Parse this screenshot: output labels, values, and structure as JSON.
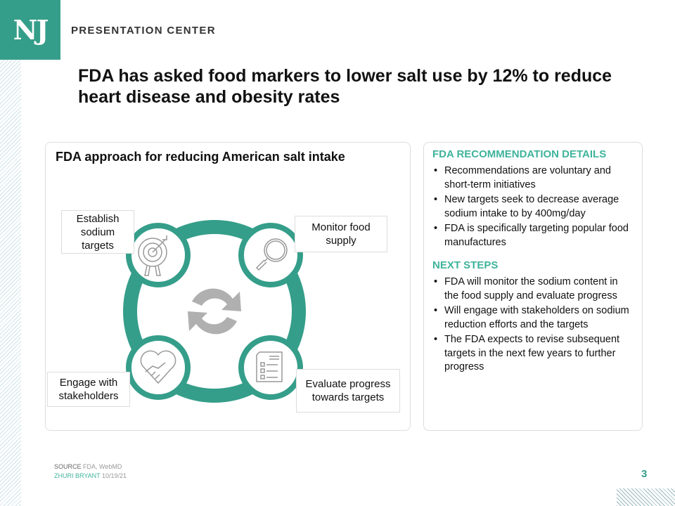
{
  "header": {
    "logo": "NJ",
    "brand": "PRESENTATION CENTER",
    "title": "FDA has asked food markers to lower salt use by 12% to reduce heart disease and obesity rates"
  },
  "colors": {
    "accent": "#359e8a",
    "heading": "#3fb39b",
    "icon": "#999999"
  },
  "diagram": {
    "title": "FDA approach for reducing American salt intake",
    "center_icon": "refresh-cycle-icon",
    "steps": [
      {
        "label": "Establish sodium targets",
        "icon": "target-icon"
      },
      {
        "label": "Monitor food supply",
        "icon": "magnifier-icon"
      },
      {
        "label": "Engage with stakeholders",
        "icon": "heart-handshake-icon"
      },
      {
        "label": "Evaluate progress towards targets",
        "icon": "checklist-icon"
      }
    ]
  },
  "details": {
    "heading1": "FDA RECOMMENDATION DETAILS",
    "items1": [
      "Recommendations are voluntary  and short-term  initiatives",
      "New targets seek to decrease average sodium intake to by 400mg/day",
      "FDA is specifically targeting popular food manufactures"
    ],
    "heading2": "NEXT STEPS",
    "items2": [
      "FDA will monitor the sodium content in the food supply and evaluate progress",
      "Will engage with stakeholders on sodium reduction efforts and the targets",
      "The FDA expects to revise subsequent targets in the next few years to further  progress"
    ]
  },
  "footer": {
    "source_label": "SOURCE",
    "source": "FDA, WebMD",
    "author": "ZHURI BRYANT",
    "date": "10/19/21",
    "page": "3"
  }
}
